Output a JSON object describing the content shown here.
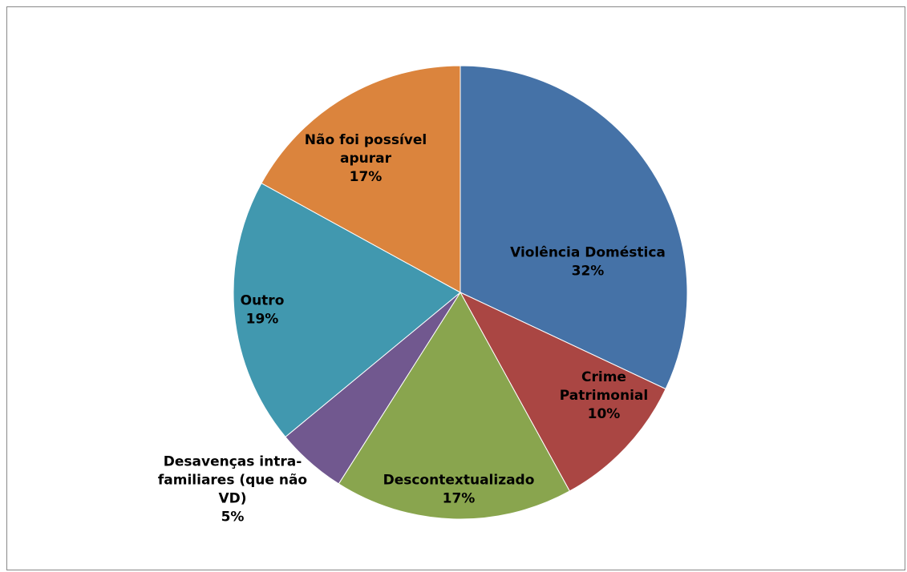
{
  "chart_data": {
    "type": "pie",
    "title": "",
    "slices": [
      {
        "label_lines": [
          "Violência Doméstica"
        ],
        "pct_label": "32%",
        "value": 32,
        "color": "#4572A7"
      },
      {
        "label_lines": [
          "Crime",
          "Patrimonial"
        ],
        "pct_label": "10%",
        "value": 10,
        "color": "#AA4643"
      },
      {
        "label_lines": [
          "Descontextualizado"
        ],
        "pct_label": "17%",
        "value": 17,
        "color": "#89A54E"
      },
      {
        "label_lines": [
          "Desavenças intra-",
          "familiares (que não",
          "VD)"
        ],
        "pct_label": "5%",
        "value": 5,
        "color": "#71588F"
      },
      {
        "label_lines": [
          "Outro"
        ],
        "pct_label": "19%",
        "value": 19,
        "color": "#4198AF"
      },
      {
        "label_lines": [
          "Não foi possível",
          "apurar"
        ],
        "pct_label": "17%",
        "value": 17,
        "color": "#DB843D"
      }
    ],
    "start": "top",
    "direction": "clockwise"
  }
}
